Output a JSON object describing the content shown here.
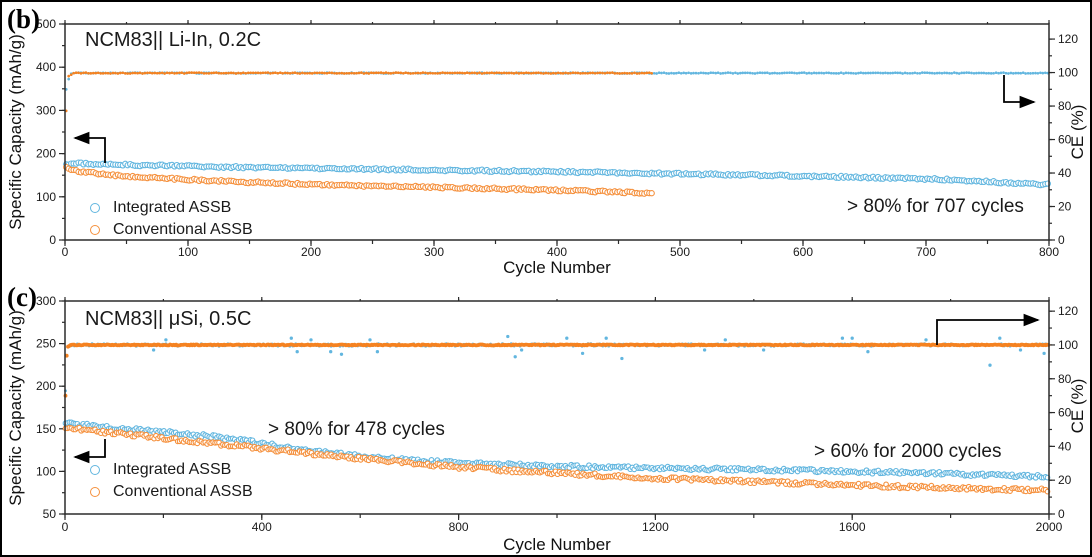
{
  "figure": {
    "background": "#ffffff",
    "axis_color": "#2b2b2b",
    "colors": {
      "integrated_blue": "#62B6DF",
      "conventional_orange": "#F5913E",
      "ce_orange": "#F58220"
    },
    "legend": [
      {
        "label": "Integrated ASSB",
        "color": "#62B6DF"
      },
      {
        "label": "Conventional ASSB",
        "color": "#F5913E"
      }
    ]
  },
  "chart_data": [
    {
      "type": "scatter",
      "panel_label": "(b)",
      "title": "NCM83|| Li-In, 0.2C",
      "xlabel": "Cycle Number",
      "ylabel_left": "Specific Capacity (mAh/g)",
      "ylabel_right": "CE (%)",
      "annotation": "> 80% for 707 cycles",
      "xlim": [
        0,
        800
      ],
      "x_major": 100,
      "x_minor": 50,
      "ylim_left": [
        0,
        500
      ],
      "yl_major": 100,
      "yl_minor": 50,
      "ylim_right": [
        0,
        129
      ],
      "yr_major": 20,
      "yr_minor": 10,
      "grid": false,
      "legend_position": "lower-left",
      "series": [
        {
          "name": "Integrated ASSB CE",
          "axis": "right",
          "marker": "dot",
          "color": "#62B6DF",
          "r": 1.35,
          "step": 2,
          "jitter": 0.45,
          "points": [
            [
              1,
              90
            ],
            [
              4,
              99
            ],
            [
              10,
              99.7
            ],
            [
              800,
              99.7
            ]
          ]
        },
        {
          "name": "Conventional ASSB CE",
          "axis": "right",
          "marker": "dot",
          "color": "#F58220",
          "r": 1.35,
          "step": 2,
          "jitter": 0.45,
          "points": [
            [
              1,
              77
            ],
            [
              3,
              98
            ],
            [
              8,
              99.7
            ],
            [
              478,
              99.7
            ]
          ]
        },
        {
          "name": "Integrated ASSB capacity",
          "axis": "left",
          "marker": "open-circle",
          "color": "#62B6DF",
          "r": 2.6,
          "step": 2,
          "jitter": 1.0,
          "points": [
            [
              1,
              176
            ],
            [
              10,
              177
            ],
            [
              50,
              174
            ],
            [
              100,
              171
            ],
            [
              150,
              168
            ],
            [
              200,
              166
            ],
            [
              250,
              164
            ],
            [
              300,
              162
            ],
            [
              350,
              160
            ],
            [
              400,
              158
            ],
            [
              450,
              156
            ],
            [
              500,
              153
            ],
            [
              550,
              151
            ],
            [
              600,
              148
            ],
            [
              650,
              145
            ],
            [
              707,
              141
            ],
            [
              750,
              135
            ],
            [
              800,
              128
            ]
          ]
        },
        {
          "name": "Conventional ASSB capacity",
          "axis": "left",
          "marker": "open-circle",
          "color": "#F5913E",
          "r": 2.6,
          "step": 2,
          "jitter": 1.0,
          "points": [
            [
              1,
              167
            ],
            [
              10,
              160
            ],
            [
              20,
              156
            ],
            [
              40,
              150
            ],
            [
              60,
              146
            ],
            [
              80,
              143
            ],
            [
              100,
              140
            ],
            [
              150,
              134
            ],
            [
              200,
              129
            ],
            [
              250,
              125
            ],
            [
              300,
              122
            ],
            [
              350,
              119
            ],
            [
              400,
              115
            ],
            [
              440,
              112
            ],
            [
              478,
              108
            ]
          ]
        }
      ]
    },
    {
      "type": "scatter",
      "panel_label": "(c)",
      "title": "NCM83|| μSi, 0.5C",
      "xlabel": "Cycle Number",
      "ylabel_left": "Specific Capacity (mAh/g)",
      "ylabel_right": "CE (%)",
      "annotations": [
        "> 80% for 478 cycles",
        "> 60% for 2000 cycles"
      ],
      "xlim": [
        0,
        2000
      ],
      "x_major": 400,
      "x_minor": 200,
      "ylim_left": [
        50,
        300
      ],
      "yl_major": 50,
      "yl_minor": 25,
      "ylim_right": [
        0,
        126
      ],
      "yr_major": 20,
      "yr_minor": 10,
      "grid": false,
      "legend_position": "lower-left",
      "series": [
        {
          "name": "Integrated ASSB CE",
          "axis": "right",
          "marker": "dot",
          "color": "#62B6DF",
          "r": 1.45,
          "step": 6,
          "jitter": 1.3,
          "points": [
            [
              1,
              73
            ],
            [
              4,
              99
            ],
            [
              12,
              100
            ],
            [
              2000,
              100
            ]
          ],
          "extra_points": [
            [
              180,
              97
            ],
            [
              205,
              103
            ],
            [
              460,
              104
            ],
            [
              472,
              96
            ],
            [
              500,
              103
            ],
            [
              540,
              96
            ],
            [
              562,
              94.5
            ],
            [
              620,
              103
            ],
            [
              635,
              96
            ],
            [
              900,
              105
            ],
            [
              915,
              93
            ],
            [
              928,
              97
            ],
            [
              1020,
              104
            ],
            [
              1052,
              95
            ],
            [
              1100,
              104
            ],
            [
              1132,
              92
            ],
            [
              1300,
              97
            ],
            [
              1342,
              103
            ],
            [
              1420,
              97
            ],
            [
              1580,
              104
            ],
            [
              1600,
              104
            ],
            [
              1632,
              96
            ],
            [
              1750,
              103
            ],
            [
              1880,
              88
            ],
            [
              1900,
              104
            ],
            [
              1942,
              97
            ],
            [
              1990,
              95
            ]
          ]
        },
        {
          "name": "Conventional ASSB CE",
          "axis": "right",
          "marker": "dot",
          "color": "#F58220",
          "r": 1.9,
          "step": 2.5,
          "jitter": 0.5,
          "points": [
            [
              1,
              70
            ],
            [
              4,
              98.5
            ],
            [
              12,
              100
            ],
            [
              2000,
              100
            ]
          ]
        },
        {
          "name": "Integrated ASSB capacity",
          "axis": "left",
          "marker": "open-circle",
          "color": "#62B6DF",
          "r": 2.3,
          "step": 4,
          "jitter": 1.8,
          "points": [
            [
              1,
              156
            ],
            [
              50,
              154
            ],
            [
              100,
              151
            ],
            [
              200,
              146
            ],
            [
              300,
              141
            ],
            [
              400,
              133
            ],
            [
              478,
              125
            ],
            [
              550,
              121
            ],
            [
              600,
              118
            ],
            [
              700,
              113
            ],
            [
              800,
              110
            ],
            [
              900,
              108
            ],
            [
              1000,
              106
            ],
            [
              1100,
              105
            ],
            [
              1200,
              104
            ],
            [
              1400,
              102
            ],
            [
              1600,
              100
            ],
            [
              1800,
              97
            ],
            [
              2000,
              94
            ]
          ]
        },
        {
          "name": "Conventional ASSB capacity",
          "axis": "left",
          "marker": "open-circle",
          "color": "#F5913E",
          "r": 2.3,
          "step": 4,
          "jitter": 1.8,
          "points": [
            [
              1,
              152
            ],
            [
              50,
              148
            ],
            [
              100,
              145
            ],
            [
              200,
              139
            ],
            [
              300,
              133
            ],
            [
              400,
              127
            ],
            [
              500,
              121
            ],
            [
              600,
              115
            ],
            [
              700,
              110
            ],
            [
              800,
              105
            ],
            [
              900,
              101
            ],
            [
              1000,
              98
            ],
            [
              1100,
              95
            ],
            [
              1200,
              92
            ],
            [
              1300,
              90
            ],
            [
              1400,
              88
            ],
            [
              1500,
              86
            ],
            [
              1600,
              84
            ],
            [
              1700,
              82
            ],
            [
              1800,
              81
            ],
            [
              1900,
              79
            ],
            [
              2000,
              78
            ]
          ]
        }
      ]
    }
  ]
}
